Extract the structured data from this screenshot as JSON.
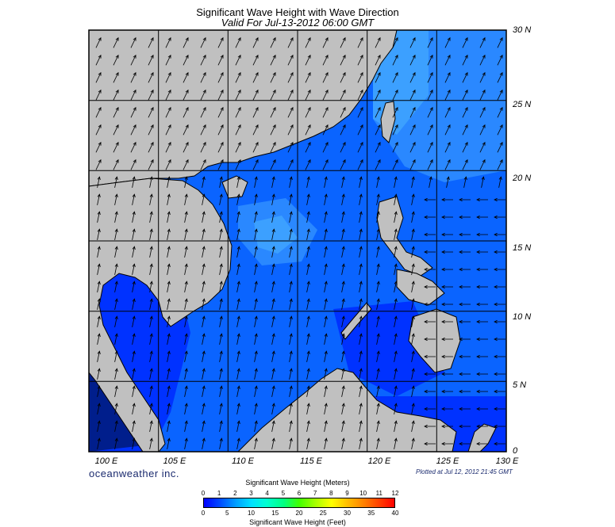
{
  "title": "Significant Wave Height with Wave Direction",
  "subtitle": "Valid For Jul-13-2012 06:00 GMT",
  "lat_labels": [
    "30 N",
    "25 N",
    "20 N",
    "15 N",
    "10 N",
    "5 N",
    "0"
  ],
  "lon_labels": [
    "100 E",
    "105 E",
    "110 E",
    "115 E",
    "120 E",
    "125 E",
    "130 E"
  ],
  "brand": "oceanweather inc.",
  "plotted": "Plotted at Jul 12, 2012 21:45 GMT",
  "legend": {
    "meters_title": "Significant Wave Height (Meters)",
    "feet_title": "Significant Wave Height (Feet)",
    "meters_ticks": [
      "0",
      "1",
      "2",
      "3",
      "4",
      "5",
      "6",
      "7",
      "8",
      "9",
      "10",
      "11",
      "12"
    ],
    "feet_ticks": [
      "0",
      "5",
      "10",
      "15",
      "20",
      "25",
      "30",
      "35",
      "40"
    ]
  },
  "colors": {
    "land": "#c0c0c0",
    "ocean_deep": "#0032ff",
    "ocean_mid": "#0a64ff",
    "ocean_light": "#3ca0ff",
    "ocean_dark": "#0014b4"
  },
  "map": {
    "lon_range": [
      100,
      130
    ],
    "lat_range": [
      0,
      30
    ],
    "grid_step_deg": 5,
    "wave_direction": "predominantly toward north-east in the South China Sea, toward west east of the Philippines"
  }
}
